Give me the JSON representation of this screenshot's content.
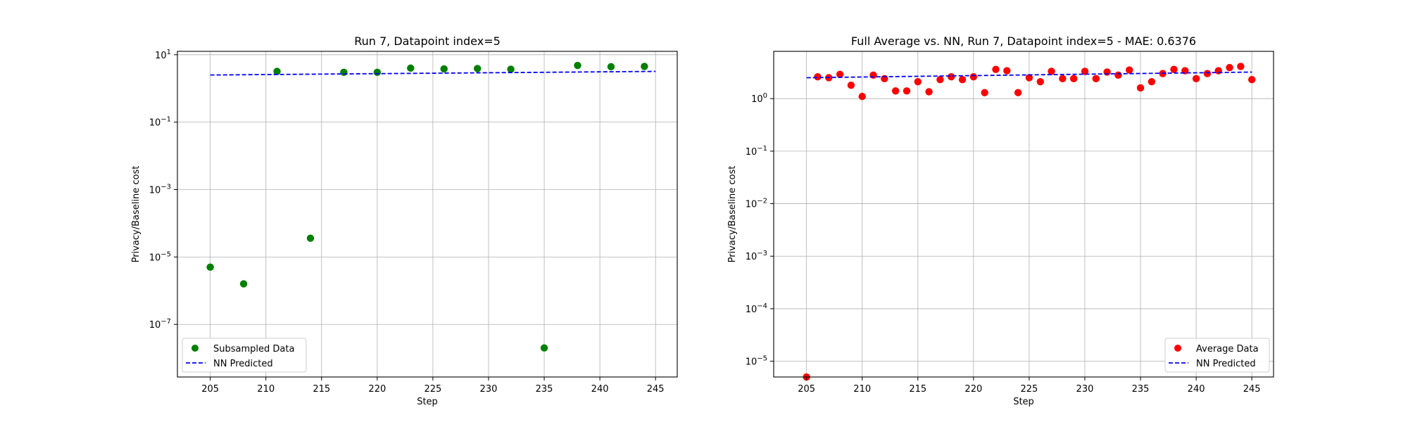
{
  "chart_data": [
    {
      "type": "scatter",
      "title": "Run 7, Datapoint index=5",
      "xlabel": "Step",
      "ylabel": "Privacy/Baseline cost",
      "yscale": "log",
      "xlim": [
        202.05,
        246.95
      ],
      "ylim": [
        -8.56,
        1.1
      ],
      "xticks": [
        205,
        210,
        215,
        220,
        225,
        230,
        235,
        240,
        245
      ],
      "yticks": [
        {
          "exp": 1,
          "label": "10^1"
        },
        {
          "exp": -1,
          "label": "10^-1"
        },
        {
          "exp": -3,
          "label": "10^-3"
        },
        {
          "exp": -5,
          "label": "10^-5"
        },
        {
          "exp": -7,
          "label": "10^-7"
        }
      ],
      "grid": true,
      "legend_position": "lower-left",
      "series": [
        {
          "name": "Subsampled Data",
          "kind": "scatter",
          "color": "#008000",
          "x": [
            205,
            208,
            211,
            214,
            217,
            220,
            223,
            226,
            229,
            232,
            235,
            238,
            241,
            244
          ],
          "y": [
            5e-06,
            1.6e-06,
            3.2,
            3.6e-05,
            3.0,
            3.0,
            4.0,
            3.8,
            3.9,
            3.7,
            2e-08,
            4.8,
            4.4,
            4.5
          ]
        },
        {
          "name": "NN Predicted",
          "kind": "line",
          "style": "dashed",
          "color": "#0000ff",
          "x": [
            205,
            245
          ],
          "y": [
            2.5,
            3.2
          ]
        }
      ]
    },
    {
      "type": "scatter",
      "title": "Full Average vs. NN, Run 7, Datapoint index=5 - MAE: 0.6376",
      "xlabel": "Step",
      "ylabel": "Privacy/Baseline cost",
      "yscale": "log",
      "xlim": [
        202.05,
        246.95
      ],
      "ylim": [
        -5.3,
        0.9
      ],
      "xticks": [
        205,
        210,
        215,
        220,
        225,
        230,
        235,
        240,
        245
      ],
      "yticks": [
        {
          "exp": 0,
          "label": "10^0"
        },
        {
          "exp": -1,
          "label": "10^-1"
        },
        {
          "exp": -2,
          "label": "10^-2"
        },
        {
          "exp": -3,
          "label": "10^-3"
        },
        {
          "exp": -4,
          "label": "10^-4"
        },
        {
          "exp": -5,
          "label": "10^-5"
        }
      ],
      "grid": true,
      "legend_position": "lower-right",
      "series": [
        {
          "name": "Average Data",
          "kind": "scatter",
          "color": "#ff0000",
          "x": [
            205,
            206,
            207,
            208,
            209,
            210,
            211,
            212,
            213,
            214,
            215,
            216,
            217,
            218,
            219,
            220,
            221,
            222,
            223,
            224,
            225,
            226,
            227,
            228,
            229,
            230,
            231,
            232,
            233,
            234,
            235,
            236,
            237,
            238,
            239,
            240,
            241,
            242,
            243,
            244,
            245
          ],
          "y": [
            5e-06,
            2.6,
            2.5,
            2.9,
            1.8,
            1.1,
            2.8,
            2.4,
            1.4,
            1.4,
            2.1,
            1.35,
            2.3,
            2.6,
            2.3,
            2.6,
            1.3,
            3.6,
            3.4,
            1.3,
            2.5,
            2.1,
            3.3,
            2.4,
            2.4,
            3.3,
            2.4,
            3.2,
            2.8,
            3.5,
            1.6,
            2.1,
            3.0,
            3.6,
            3.4,
            2.4,
            3.0,
            3.4,
            3.9,
            4.1,
            2.3
          ]
        },
        {
          "name": "NN Predicted",
          "kind": "line",
          "style": "dashed",
          "color": "#0000ff",
          "x": [
            205,
            245
          ],
          "y": [
            2.5,
            3.2
          ]
        }
      ]
    }
  ]
}
